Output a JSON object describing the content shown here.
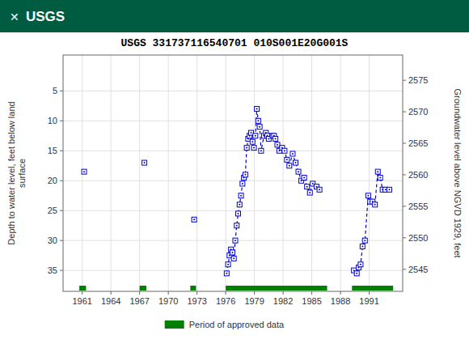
{
  "chart_data": {
    "type": "line",
    "title": "USGS 331737116540701 010S001E20G001S",
    "annotations": [
      {
        "text": "✕"
      },
      {
        "text": "USGS"
      }
    ],
    "y_label": "Depth to water level, feet below land\nsurface",
    "y2_label": "Groundwater level above NGVD 1929, feet",
    "xlim": [
      1959.0,
      1994.5
    ],
    "xticks": [
      1961,
      1964,
      1967,
      1970,
      1973,
      1976,
      1979,
      1982,
      1985,
      1988,
      1991
    ],
    "ylim": [
      38.5,
      -1.0
    ],
    "yticks": [
      5,
      10,
      15,
      20,
      25,
      30,
      35
    ],
    "y2lim": [
      2541.5,
      2579.0
    ],
    "y2ticks": [
      2575,
      2570,
      2565,
      2560,
      2555,
      2550,
      2545
    ],
    "grid": true,
    "legend": "bottom",
    "series": [
      {
        "color": "#0000cc",
        "marker": "square",
        "line_style": "dashed",
        "x": [
          1961.2
        ],
        "values": [
          18.5
        ]
      },
      {
        "color": "#0000cc",
        "marker": "square",
        "line_style": "dashed",
        "x": [
          1967.5
        ],
        "values": [
          17.0
        ]
      },
      {
        "color": "#0000cc",
        "marker": "square",
        "line_style": "dashed",
        "x": [
          1972.7
        ],
        "values": [
          26.5
        ]
      },
      {
        "color": "#0000cc",
        "marker": "square",
        "line_style": "dashed",
        "x": [
          1976.1,
          1976.25,
          1976.4,
          1976.55,
          1976.7,
          1976.85,
          1977.0,
          1977.15,
          1977.3,
          1977.45,
          1977.6,
          1977.75,
          1977.9,
          1978.05,
          1978.2,
          1978.35,
          1978.5,
          1978.65,
          1978.8,
          1978.95,
          1979.1,
          1979.25,
          1979.4,
          1979.55,
          1979.7,
          1980.0,
          1980.2,
          1980.35,
          1980.5,
          1980.9,
          1981.05,
          1981.2,
          1981.4,
          1981.6,
          1981.9,
          1982.15,
          1982.4,
          1982.65,
          1983.0,
          1983.3,
          1983.6,
          1983.9,
          1984.2,
          1984.5,
          1984.8,
          1985.1,
          1985.5,
          1985.8
        ],
        "values": [
          35.5,
          34.0,
          32.5,
          31.5,
          32.0,
          33.0,
          30.0,
          27.5,
          25.5,
          24.0,
          22.5,
          20.5,
          19.5,
          19.0,
          14.5,
          13.0,
          12.5,
          12.0,
          13.5,
          14.5,
          12.5,
          8.0,
          10.0,
          11.0,
          15.0,
          12.5,
          12.0,
          12.5,
          13.0,
          12.5,
          12.5,
          13.0,
          14.0,
          15.0,
          14.5,
          15.0,
          16.5,
          17.5,
          15.5,
          17.0,
          18.5,
          20.0,
          19.5,
          21.0,
          22.0,
          20.5,
          21.0,
          21.5
        ]
      },
      {
        "color": "#0000cc",
        "marker": "square",
        "line_style": "dashed",
        "x": [
          1989.4,
          1989.7,
          1989.9,
          1990.1,
          1990.3,
          1990.55,
          1990.9,
          1991.1,
          1991.35,
          1991.6,
          1991.9,
          1992.15,
          1992.4,
          1992.7,
          1993.1
        ],
        "values": [
          35.0,
          35.5,
          34.5,
          34.0,
          31.0,
          30.0,
          22.5,
          23.5,
          23.5,
          24.0,
          18.5,
          19.5,
          21.5,
          21.5,
          21.5
        ]
      },
      {
        "name": "Period of approved data",
        "type": "span",
        "color": "#008000",
        "periods": [
          [
            1960.7,
            1961.4
          ],
          [
            1967.0,
            1967.7
          ],
          [
            1972.3,
            1972.9
          ],
          [
            1976.0,
            1986.6
          ],
          [
            1989.2,
            1993.5
          ]
        ]
      }
    ]
  }
}
